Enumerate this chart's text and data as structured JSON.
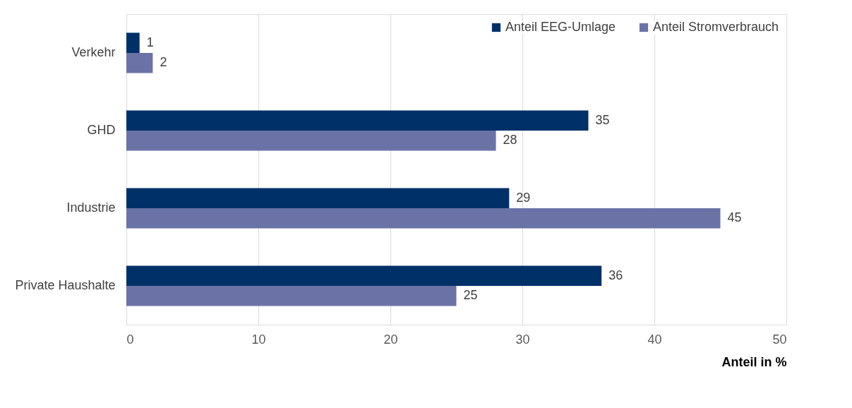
{
  "chart_data": {
    "type": "bar",
    "orientation": "horizontal",
    "xlabel": "Anteil in %",
    "categories": [
      "Verkehr",
      "GHD",
      "Industrie",
      "Private Haushalte"
    ],
    "series": [
      {
        "name": "Anteil EEG-Umlage",
        "color": "#003068",
        "values": [
          1,
          35,
          29,
          36
        ]
      },
      {
        "name": "Anteil Stromverbrauch",
        "color": "#6b73a6",
        "values": [
          2,
          28,
          45,
          25
        ]
      }
    ],
    "xlim": [
      0,
      50
    ],
    "xticks": [
      0,
      10,
      20,
      30,
      40,
      50
    ],
    "grid": "x",
    "legend": "top right",
    "data_labels": true
  }
}
